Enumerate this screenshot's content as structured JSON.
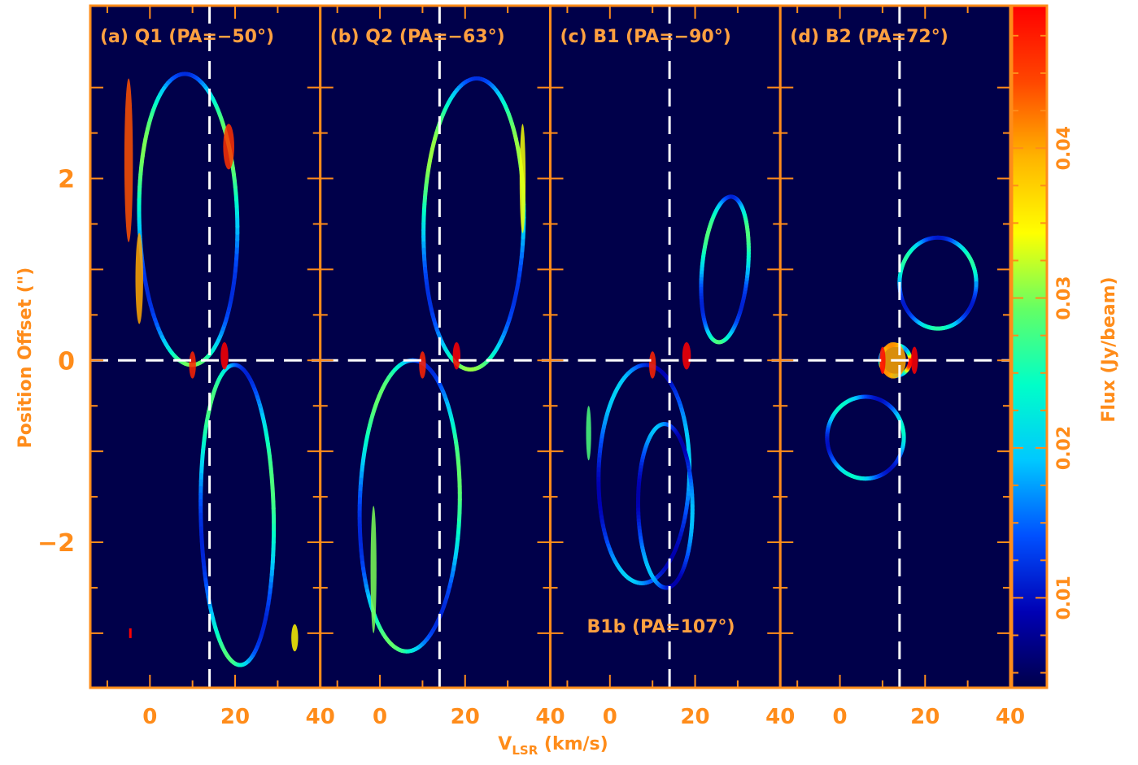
{
  "chart_data": {
    "type": "heatmap",
    "figure_kind": "position-velocity diagrams with colorbar",
    "colors": {
      "frame": "#ff8c1a",
      "text": "#ff8c1a",
      "panel_text": "#ffa040",
      "background": "#00004a",
      "dashed_lines": "#ffffff",
      "colormap": [
        "#00004a",
        "#0000b4",
        "#0050ff",
        "#00c8ff",
        "#00ffc8",
        "#64ff64",
        "#ffff00",
        "#ffb400",
        "#ff4600",
        "#ff0000"
      ]
    },
    "xlabel": "V",
    "xlabel_sub": "LSR",
    "xlabel_unit": " (km/s)",
    "ylabel": "Position Offset (\")",
    "colorbar_label": "Flux (Jy/beam)",
    "xlim": [
      -14,
      40
    ],
    "ylim": [
      -3.6,
      3.9
    ],
    "x_ticks": [
      {
        "value": 0,
        "label": "0"
      },
      {
        "value": 20,
        "label": "20"
      },
      {
        "value": 40,
        "label": "40"
      }
    ],
    "y_ticks": [
      {
        "value": 2,
        "label": "2"
      },
      {
        "value": 0,
        "label": "0"
      },
      {
        "value": -2,
        "label": "−2"
      }
    ],
    "colorbar": {
      "range": [
        0.004,
        0.0495
      ],
      "ticks": [
        {
          "value": 0.01,
          "label": "0.01"
        },
        {
          "value": 0.02,
          "label": "0.02"
        },
        {
          "value": 0.03,
          "label": "0.03"
        },
        {
          "value": 0.04,
          "label": "0.04"
        }
      ]
    },
    "systemic_velocity": 14,
    "zero_offset": 0,
    "panels": [
      {
        "label": "(a) Q1 (PA=−50°)",
        "extra_label": "",
        "beam": {
          "x": -4.5,
          "y": -3.0
        },
        "arcs": [
          {
            "cx": 9,
            "cy": 1.55,
            "rx": 12.5,
            "ry": 1.6,
            "rot": 0.4,
            "a0": 0,
            "a1": 6.28,
            "val": 0.026
          },
          {
            "cx": 20.5,
            "cy": -1.7,
            "rx": 9.5,
            "ry": 1.65,
            "rot": 0.45,
            "a0": 0,
            "a1": 6.28,
            "val": 0.024
          }
        ],
        "blobs": [
          {
            "x": -5,
            "y": 2.2,
            "rx": 1.0,
            "ry": 0.9,
            "val": 0.044
          },
          {
            "x": -2.5,
            "y": 0.9,
            "rx": 0.9,
            "ry": 0.5,
            "val": 0.04
          },
          {
            "x": 18.5,
            "y": 2.35,
            "rx": 1.3,
            "ry": 0.25,
            "val": 0.046
          },
          {
            "x": 34,
            "y": -3.05,
            "rx": 0.8,
            "ry": 0.15,
            "val": 0.035
          },
          {
            "x": 17.5,
            "y": 0.05,
            "rx": 0.9,
            "ry": 0.15,
            "val": 0.05
          },
          {
            "x": 10,
            "y": -0.05,
            "rx": 0.8,
            "ry": 0.15,
            "val": 0.047
          }
        ]
      },
      {
        "label": "(b) Q2 (PA=−63°)",
        "extra_label": "",
        "arcs": [
          {
            "cx": 22,
            "cy": 1.5,
            "rx": 12.5,
            "ry": 1.6,
            "rot": -0.35,
            "a0": 0,
            "a1": 6.28,
            "val": 0.027
          },
          {
            "cx": 7,
            "cy": -1.6,
            "rx": 12.5,
            "ry": 1.6,
            "rot": -0.35,
            "a0": 0,
            "a1": 6.28,
            "val": 0.025
          }
        ],
        "blobs": [
          {
            "x": 33.5,
            "y": 2.0,
            "rx": 0.7,
            "ry": 0.6,
            "val": 0.034
          },
          {
            "x": -1.5,
            "y": -2.3,
            "rx": 0.7,
            "ry": 0.7,
            "val": 0.03
          },
          {
            "x": 18,
            "y": 0.05,
            "rx": 0.9,
            "ry": 0.15,
            "val": 0.05
          },
          {
            "x": 10,
            "y": -0.05,
            "rx": 0.8,
            "ry": 0.15,
            "val": 0.047
          }
        ]
      },
      {
        "label": "(c) B1 (PA=−90°)",
        "extra_label": "B1b (PA=107°)",
        "arcs": [
          {
            "cx": 27,
            "cy": 1.0,
            "rx": 10,
            "ry": 0.8,
            "rot": -1.0,
            "a0": 0,
            "a1": 6.28,
            "val": 0.024
          },
          {
            "cx": 8,
            "cy": -1.25,
            "rx": 11,
            "ry": 1.2,
            "rot": -0.25,
            "a0": 0,
            "a1": 6.28,
            "val": 0.016
          },
          {
            "cx": 13,
            "cy": -1.6,
            "rx": 6.5,
            "ry": 0.9,
            "rot": 0.2,
            "a0": 0,
            "a1": 6.28,
            "val": 0.015
          }
        ],
        "blobs": [
          {
            "x": 18,
            "y": 0.05,
            "rx": 1.0,
            "ry": 0.15,
            "val": 0.05
          },
          {
            "x": 10,
            "y": -0.05,
            "rx": 0.8,
            "ry": 0.15,
            "val": 0.047
          },
          {
            "x": -5,
            "y": -0.8,
            "rx": 0.6,
            "ry": 0.3,
            "val": 0.028
          }
        ]
      },
      {
        "label": "(d) B2 (PA=72°)",
        "extra_label": "",
        "arcs": [
          {
            "cx": 23,
            "cy": 0.85,
            "rx": 9,
            "ry": 0.5,
            "rot": 0,
            "a0": 0,
            "a1": 6.28,
            "val": 0.022
          },
          {
            "cx": 6,
            "cy": -0.85,
            "rx": 9,
            "ry": 0.45,
            "rot": 0,
            "a0": 0,
            "a1": 6.28,
            "val": 0.02
          },
          {
            "cx": 13,
            "cy": 0,
            "rx": 3.5,
            "ry": 0.17,
            "rot": 0,
            "a0": 0,
            "a1": 6.28,
            "val": 0.045
          }
        ],
        "blobs": [
          {
            "x": 12.5,
            "y": 0,
            "rx": 3.0,
            "ry": 0.2,
            "val": 0.04
          },
          {
            "x": 17.5,
            "y": 0,
            "rx": 0.8,
            "ry": 0.15,
            "val": 0.05
          },
          {
            "x": 10,
            "y": 0,
            "rx": 0.7,
            "ry": 0.15,
            "val": 0.049
          }
        ]
      }
    ]
  }
}
